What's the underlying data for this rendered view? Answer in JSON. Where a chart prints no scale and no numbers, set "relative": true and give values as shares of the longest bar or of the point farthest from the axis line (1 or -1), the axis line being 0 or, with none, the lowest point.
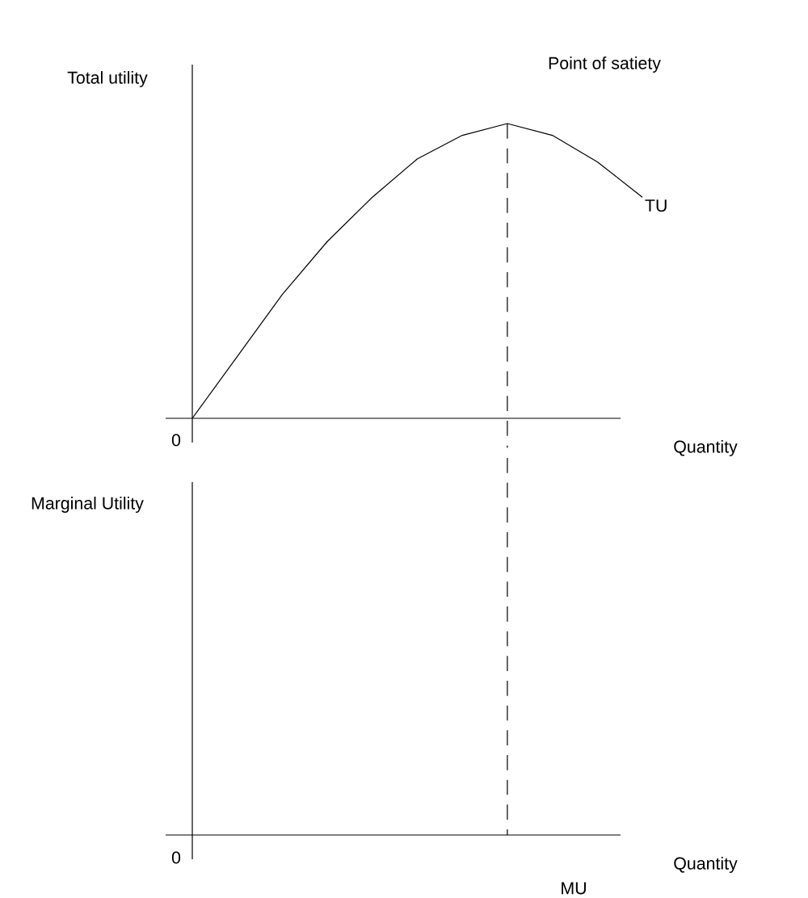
{
  "chart_data": [
    {
      "type": "line",
      "relative": true,
      "ylabel": "Total utility",
      "xlabel": "Quantity",
      "categories": [
        null,
        null,
        null,
        null,
        null,
        null,
        null,
        null,
        null,
        null,
        null
      ],
      "series": [
        {
          "name": "TU",
          "color": "#000000",
          "values": [
            0,
            0.21,
            0.42,
            0.6,
            0.75,
            0.88,
            0.96,
            1.0,
            0.96,
            0.87,
            0.75
          ]
        }
      ],
      "annotations": [
        "Point of satiety",
        "0"
      ]
    },
    {
      "type": "other",
      "ylabel": "Marginal Utility",
      "xlabel": "Quantity",
      "annotations": [
        "0",
        "MU"
      ]
    }
  ]
}
